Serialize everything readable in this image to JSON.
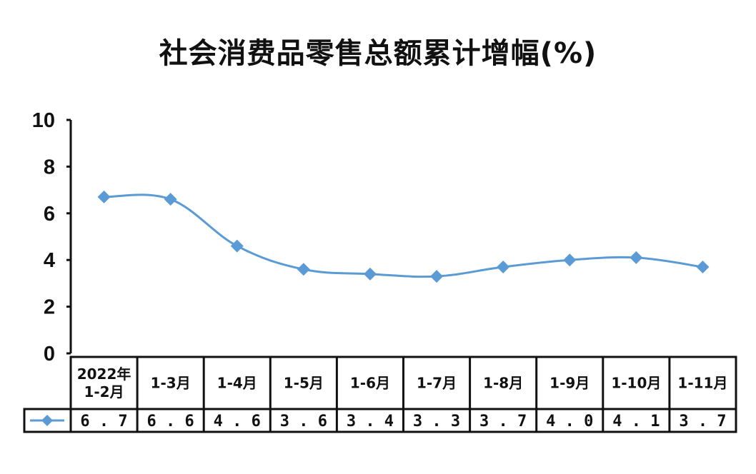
{
  "chart_data": {
    "type": "line",
    "title": "社会消费品零售总额累计增幅(%)",
    "categories": [
      "2022年\n1-2月",
      "1-3月",
      "1-4月",
      "1-5月",
      "1-6月",
      "1-7月",
      "1-8月",
      "1-9月",
      "1-10月",
      "1-11月"
    ],
    "series": [
      {
        "values": [
          6.7,
          6.6,
          4.6,
          3.6,
          3.4,
          3.3,
          3.7,
          4.0,
          4.1,
          3.7
        ]
      }
    ],
    "value_labels": [
      "6.7",
      "6.6",
      "4.6",
      "3.6",
      "3.4",
      "3.3",
      "3.7",
      "4.0",
      "4.1",
      "3.7"
    ],
    "ylim": [
      0,
      10
    ],
    "yticks": [
      0,
      2,
      4,
      6,
      8,
      10
    ],
    "xlabel": "",
    "ylabel": "",
    "grid": false,
    "legend": "data-table",
    "line_color": "#5b9bd5"
  }
}
